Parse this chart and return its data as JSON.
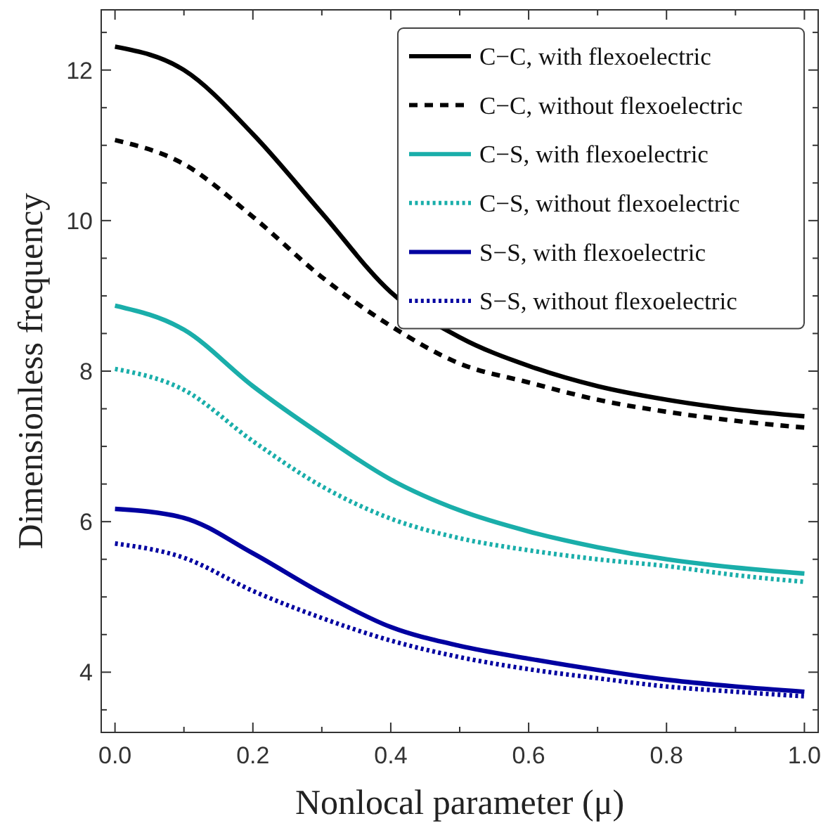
{
  "chart_data": {
    "type": "line",
    "xlabel": "Nonlocal parameter (μ)",
    "ylabel": "Dimensionless frequency",
    "x": [
      0,
      0.1,
      0.2,
      0.3,
      0.4,
      0.5,
      0.6,
      0.7,
      0.8,
      0.9,
      1
    ],
    "xlim": [
      -0.02,
      1.02
    ],
    "ylim": [
      3.2,
      12.8
    ],
    "xticks": [
      {
        "value": 0,
        "label": "0.0"
      },
      {
        "value": 0.1,
        "label": null
      },
      {
        "value": 0.2,
        "label": "0.2"
      },
      {
        "value": 0.3,
        "label": null
      },
      {
        "value": 0.4,
        "label": "0.4"
      },
      {
        "value": 0.5,
        "label": null
      },
      {
        "value": 0.6,
        "label": "0.6"
      },
      {
        "value": 0.7,
        "label": null
      },
      {
        "value": 0.8,
        "label": "0.8"
      },
      {
        "value": 0.9,
        "label": null
      },
      {
        "value": 1,
        "label": "1.0"
      }
    ],
    "yticks": [
      {
        "value": 3.5,
        "label": null
      },
      4,
      {
        "value": 4.5,
        "label": null
      },
      {
        "value": 5,
        "label": null
      },
      {
        "value": 5.5,
        "label": null
      },
      6,
      {
        "value": 6.5,
        "label": null
      },
      {
        "value": 7,
        "label": null
      },
      {
        "value": 7.5,
        "label": null
      },
      8,
      {
        "value": 8.5,
        "label": null
      },
      {
        "value": 9,
        "label": null
      },
      {
        "value": 9.5,
        "label": null
      },
      10,
      {
        "value": 10.5,
        "label": null
      },
      {
        "value": 11,
        "label": null
      },
      {
        "value": 11.5,
        "label": null
      },
      12,
      {
        "value": 12.5,
        "label": null
      }
    ],
    "legend": "top right",
    "series": [
      {
        "name": "C−C, with flexoelectric",
        "color": "#000000",
        "line_style": "solid",
        "values": [
          12.31,
          12.0,
          11.15,
          10.1,
          9.05,
          8.45,
          8.07,
          7.8,
          7.62,
          7.49,
          7.4
        ]
      },
      {
        "name": "C−C, without flexoelectric",
        "color": "#000000",
        "line_style": "dashed",
        "values": [
          11.07,
          10.75,
          10.05,
          9.25,
          8.6,
          8.1,
          7.85,
          7.62,
          7.46,
          7.34,
          7.25
        ]
      },
      {
        "name": "C−S, with flexoelectric",
        "color": "#1aaeaa",
        "line_style": "solid",
        "values": [
          8.87,
          8.55,
          7.8,
          7.15,
          6.56,
          6.15,
          5.87,
          5.66,
          5.5,
          5.39,
          5.31
        ]
      },
      {
        "name": "C−S, without flexoelectric",
        "color": "#1aaeaa",
        "line_style": "dotted",
        "values": [
          8.03,
          7.75,
          7.07,
          6.47,
          6.04,
          5.78,
          5.62,
          5.5,
          5.41,
          5.29,
          5.2
        ]
      },
      {
        "name": "S−S, with flexoelectric",
        "color": "#0000a0",
        "line_style": "solid",
        "values": [
          6.17,
          6.05,
          5.58,
          5.05,
          4.6,
          4.35,
          4.18,
          4.03,
          3.9,
          3.81,
          3.74
        ]
      },
      {
        "name": "S−S, without flexoelectric",
        "color": "#0000a0",
        "line_style": "dotted",
        "values": [
          5.71,
          5.52,
          5.08,
          4.72,
          4.42,
          4.2,
          4.04,
          3.92,
          3.81,
          3.74,
          3.68
        ]
      }
    ]
  }
}
